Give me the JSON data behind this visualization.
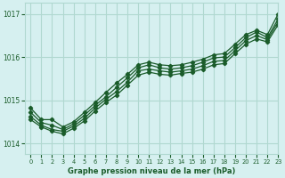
{
  "title": "Graphe pression niveau de la mer (hPa)",
  "background_color": "#d6f0f0",
  "grid_color": "#b0d8d0",
  "line_color": "#1a5c2a",
  "xlim": [
    -0.5,
    23
  ],
  "ylim": [
    1013.75,
    1017.25
  ],
  "yticks": [
    1014,
    1015,
    1016,
    1017
  ],
  "xticks": [
    0,
    1,
    2,
    3,
    4,
    5,
    6,
    7,
    8,
    9,
    10,
    11,
    12,
    13,
    14,
    15,
    16,
    17,
    18,
    19,
    20,
    21,
    22,
    23
  ],
  "series": [
    [
      1014.82,
      1014.55,
      1014.55,
      1014.38,
      1014.5,
      1014.72,
      1014.95,
      1015.18,
      1015.4,
      1015.6,
      1015.82,
      1015.88,
      1015.82,
      1015.8,
      1015.82,
      1015.88,
      1015.95,
      1016.05,
      1016.08,
      1016.3,
      1016.52,
      1016.62,
      1016.52,
      1017.0
    ],
    [
      1014.72,
      1014.48,
      1014.42,
      1014.32,
      1014.45,
      1014.65,
      1014.88,
      1015.08,
      1015.3,
      1015.52,
      1015.75,
      1015.82,
      1015.75,
      1015.72,
      1015.75,
      1015.8,
      1015.88,
      1015.98,
      1016.0,
      1016.22,
      1016.45,
      1016.58,
      1016.45,
      1016.88
    ],
    [
      1014.62,
      1014.42,
      1014.32,
      1014.28,
      1014.4,
      1014.58,
      1014.82,
      1015.02,
      1015.2,
      1015.42,
      1015.68,
      1015.72,
      1015.68,
      1015.65,
      1015.68,
      1015.72,
      1015.8,
      1015.9,
      1015.92,
      1016.15,
      1016.38,
      1016.5,
      1016.4,
      1016.82
    ],
    [
      1014.55,
      1014.38,
      1014.28,
      1014.22,
      1014.35,
      1014.52,
      1014.75,
      1014.95,
      1015.12,
      1015.35,
      1015.58,
      1015.65,
      1015.6,
      1015.58,
      1015.62,
      1015.65,
      1015.72,
      1015.82,
      1015.85,
      1016.08,
      1016.3,
      1016.42,
      1016.35,
      1016.75
    ]
  ]
}
